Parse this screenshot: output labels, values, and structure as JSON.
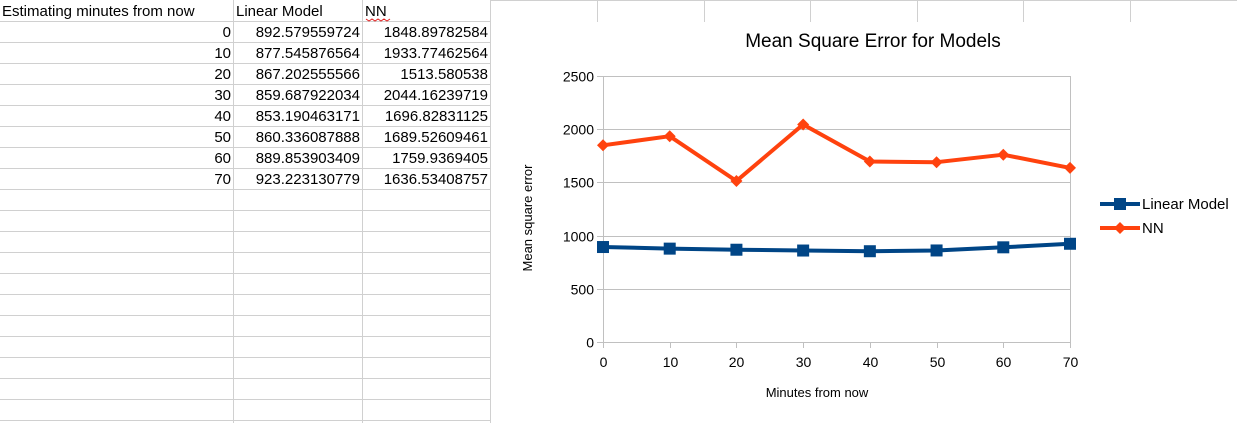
{
  "table": {
    "headers": [
      "Estimating minutes from now",
      "Linear Model",
      "NN"
    ],
    "rows": [
      [
        "0",
        "892.579559724",
        "1848.89782584"
      ],
      [
        "10",
        "877.545876564",
        "1933.77462564"
      ],
      [
        "20",
        "867.202555566",
        "1513.580538"
      ],
      [
        "30",
        "859.687922034",
        "2044.16239719"
      ],
      [
        "40",
        "853.190463171",
        "1696.82831125"
      ],
      [
        "50",
        "860.336087888",
        "1689.52609461"
      ],
      [
        "60",
        "889.853903409",
        "1759.9369405"
      ],
      [
        "70",
        "923.223130779",
        "1636.53408757"
      ]
    ]
  },
  "chart_data": {
    "type": "line",
    "title": "Mean Square Error for Models",
    "xlabel": "Minutes from now",
    "ylabel": "Mean square error",
    "x": [
      0,
      10,
      20,
      30,
      40,
      50,
      60,
      70
    ],
    "ylim": [
      0,
      2500
    ],
    "yticks": [
      0,
      500,
      1000,
      1500,
      2000,
      2500
    ],
    "grid": true,
    "legend": "right",
    "series": [
      {
        "name": "Linear Model",
        "color": "#004586",
        "marker": "square",
        "values": [
          892.579559724,
          877.545876564,
          867.202555566,
          859.687922034,
          853.190463171,
          860.336087888,
          889.853903409,
          923.223130779
        ]
      },
      {
        "name": "NN",
        "color": "#ff420e",
        "marker": "diamond",
        "values": [
          1848.89782584,
          1933.77462564,
          1513.580538,
          2044.16239719,
          1696.82831125,
          1689.52609461,
          1759.9369405,
          1636.53408757
        ]
      }
    ]
  },
  "colors": {
    "gridline": "#c0c0c0",
    "cell_border": "#d0d0d0",
    "spellcheck_underline": "#e02020"
  }
}
